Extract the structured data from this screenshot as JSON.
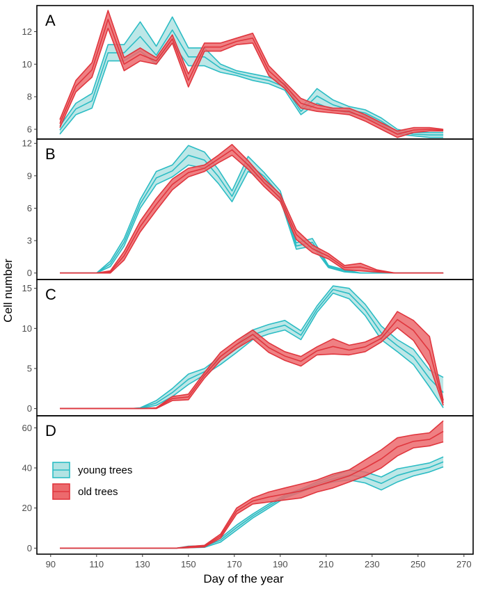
{
  "chart_data": {
    "type": "area",
    "xlabel": "Day of the year",
    "ylabel": "Cell number",
    "x_ticks": [
      90,
      110,
      130,
      150,
      170,
      190,
      210,
      230,
      250,
      270
    ],
    "xlim": [
      84,
      274
    ],
    "legend": {
      "placement": "inside-left, panel D",
      "entries": [
        {
          "label": "young trees",
          "series": "young",
          "color": "#2bbcc4",
          "fill": "#b2e3e3"
        },
        {
          "label": "old trees",
          "series": "old",
          "color": "#e0363e",
          "fill": "#ec6a6d"
        }
      ]
    },
    "colors": {
      "young_line": "#2bbcc4",
      "young_fill": "#b2e3e3",
      "old_line": "#e0363e",
      "old_fill": "#ec6a6d",
      "frame": "#000000"
    },
    "panels": [
      {
        "label": "A",
        "ylim": [
          5.4,
          13.6
        ],
        "y_ticks": [
          6,
          8,
          10,
          12
        ],
        "series": [
          {
            "key": "young",
            "x": [
              94,
              101,
              108,
              115,
              122,
              129,
              136,
              143,
              150,
              157,
              164,
              171,
              178,
              185,
              192,
              199,
              206,
              213,
              220,
              227,
              234,
              241,
              248,
              255,
              261
            ],
            "lower": [
              5.7,
              6.9,
              7.3,
              10.2,
              10.2,
              10.8,
              10.0,
              11.3,
              9.9,
              9.9,
              9.5,
              9.3,
              9.0,
              8.8,
              8.4,
              6.9,
              7.6,
              7.2,
              7.0,
              6.8,
              6.3,
              5.7,
              5.6,
              5.5,
              5.5
            ],
            "upper": [
              6.2,
              7.6,
              8.2,
              11.2,
              11.2,
              12.6,
              11.1,
              12.9,
              11.0,
              11.0,
              10.0,
              9.6,
              9.4,
              9.2,
              8.8,
              7.3,
              8.5,
              7.8,
              7.4,
              7.2,
              6.7,
              6.0,
              5.8,
              5.8,
              5.8
            ]
          },
          {
            "key": "old",
            "x": [
              94,
              101,
              108,
              115,
              122,
              129,
              136,
              143,
              150,
              157,
              164,
              171,
              178,
              185,
              192,
              199,
              206,
              213,
              220,
              227,
              234,
              241,
              248,
              255,
              261
            ],
            "lower": [
              6.1,
              8.3,
              9.2,
              12.2,
              9.6,
              10.2,
              10.0,
              11.3,
              8.6,
              10.8,
              10.8,
              11.2,
              11.3,
              9.3,
              8.5,
              7.3,
              7.1,
              7.0,
              6.9,
              6.5,
              6.0,
              5.5,
              5.8,
              5.9,
              5.9
            ],
            "upper": [
              6.6,
              9.0,
              10.1,
              13.3,
              10.4,
              11.0,
              10.4,
              11.8,
              9.4,
              11.3,
              11.3,
              11.6,
              11.9,
              9.9,
              8.9,
              7.9,
              7.5,
              7.3,
              7.3,
              6.9,
              6.4,
              5.9,
              6.1,
              6.1,
              6.0
            ]
          }
        ]
      },
      {
        "label": "B",
        "ylim": [
          -0.6,
          12.4
        ],
        "y_ticks": [
          0,
          3,
          6,
          9,
          12
        ],
        "series": [
          {
            "key": "young",
            "x": [
              94,
              100,
              105,
              110,
              116,
              122,
              129,
              136,
              143,
              150,
              157,
              163,
              169,
              176,
              183,
              190,
              197,
              204,
              211,
              218,
              225,
              232,
              240,
              250,
              261
            ],
            "lower": [
              0,
              0,
              0,
              0,
              0.6,
              2.5,
              6.0,
              8.2,
              8.9,
              10.0,
              9.7,
              8.3,
              6.6,
              9.4,
              8.6,
              6.8,
              2.2,
              2.5,
              0.5,
              0.1,
              0,
              0,
              0,
              0,
              0
            ],
            "upper": [
              0,
              0,
              0,
              0,
              1.1,
              3.2,
              6.8,
              9.4,
              10.0,
              11.8,
              11.2,
              9.6,
              7.6,
              10.8,
              9.3,
              7.6,
              2.8,
              3.2,
              0.7,
              0.3,
              0,
              0,
              0,
              0,
              0
            ]
          },
          {
            "key": "old",
            "x": [
              94,
              100,
              105,
              110,
              116,
              122,
              129,
              136,
              143,
              150,
              157,
              163,
              169,
              176,
              183,
              190,
              197,
              204,
              211,
              218,
              225,
              232,
              240,
              250,
              261
            ],
            "lower": [
              0,
              0,
              0,
              0,
              0,
              1.2,
              3.8,
              5.8,
              7.7,
              8.9,
              9.4,
              10.2,
              10.9,
              9.6,
              8.0,
              6.6,
              3.1,
              1.9,
              1.3,
              0.3,
              0.2,
              0.1,
              0,
              0,
              0
            ],
            "upper": [
              0,
              0,
              0,
              0,
              0.2,
              2.0,
              4.8,
              6.9,
              8.7,
              9.7,
              10.0,
              10.9,
              11.9,
              10.4,
              8.7,
              7.3,
              4.0,
              2.6,
              1.8,
              0.7,
              0.9,
              0.3,
              0,
              0,
              0
            ]
          }
        ]
      },
      {
        "label": "C",
        "ylim": [
          -0.9,
          16.1
        ],
        "y_ticks": [
          0,
          5,
          10,
          15
        ],
        "series": [
          {
            "key": "young",
            "x": [
              94,
              110,
              125,
              129,
              136,
              143,
              150,
              157,
              164,
              171,
              178,
              185,
              192,
              199,
              206,
              213,
              220,
              227,
              234,
              241,
              248,
              255,
              261
            ],
            "lower": [
              0,
              0,
              0,
              0,
              0.4,
              1.5,
              3.0,
              4.2,
              5.5,
              7.0,
              8.6,
              9.3,
              9.8,
              8.6,
              12.0,
              14.4,
              13.7,
              11.6,
              8.6,
              7.1,
              5.5,
              2.7,
              0.1
            ],
            "upper": [
              0,
              0,
              0,
              0.1,
              1.0,
              2.5,
              4.3,
              5.0,
              6.5,
              8.0,
              9.8,
              10.5,
              11.0,
              9.7,
              12.8,
              15.3,
              15.0,
              13.0,
              10.3,
              8.6,
              7.4,
              4.8,
              3.9
            ]
          },
          {
            "key": "old",
            "x": [
              94,
              110,
              125,
              129,
              136,
              143,
              150,
              157,
              164,
              171,
              178,
              185,
              192,
              199,
              206,
              213,
              220,
              227,
              234,
              241,
              248,
              255,
              261
            ],
            "lower": [
              0,
              0,
              0,
              0,
              0,
              1.0,
              1.1,
              3.8,
              6.0,
              7.5,
              8.7,
              7.0,
              6.0,
              5.3,
              6.7,
              6.8,
              6.7,
              7.1,
              8.3,
              10.1,
              8.5,
              5.4,
              0.4
            ],
            "upper": [
              0,
              0,
              0,
              0,
              0.1,
              1.5,
              1.8,
              4.5,
              7.0,
              8.5,
              9.8,
              8.2,
              7.1,
              6.5,
              7.7,
              8.7,
              7.9,
              8.3,
              9.2,
              12.1,
              11.0,
              9.0,
              1.0
            ]
          }
        ]
      },
      {
        "label": "D",
        "ylim": [
          -3,
          66
        ],
        "y_ticks": [
          0,
          20,
          40,
          60
        ],
        "series": [
          {
            "key": "young",
            "x": [
              94,
              110,
              130,
              145,
              150,
              157,
              164,
              171,
              178,
              185,
              192,
              199,
              206,
              213,
              220,
              227,
              234,
              241,
              248,
              255,
              261
            ],
            "lower": [
              0,
              0,
              0,
              0,
              0.2,
              0.4,
              3.0,
              9.0,
              15.0,
              20.0,
              25.0,
              28.0,
              31.0,
              33.0,
              34.0,
              32.5,
              29.0,
              33.0,
              36.0,
              38.0,
              40.5
            ],
            "upper": [
              0,
              0,
              0,
              0,
              1.0,
              1.2,
              5.0,
              11.5,
              17.0,
              22.0,
              26.5,
              29.5,
              33.0,
              36.0,
              39.0,
              38.0,
              35.5,
              39.5,
              41.0,
              42.5,
              45.5
            ]
          },
          {
            "key": "old",
            "x": [
              94,
              110,
              130,
              145,
              150,
              157,
              164,
              171,
              178,
              185,
              192,
              199,
              206,
              213,
              220,
              227,
              234,
              241,
              248,
              255,
              261
            ],
            "lower": [
              0,
              0,
              0,
              0,
              0.2,
              0.6,
              5.0,
              17.0,
              22.0,
              23.0,
              24.0,
              25.0,
              28.0,
              30.0,
              33.0,
              36.0,
              40.0,
              46.0,
              50.0,
              51.0,
              53.0
            ],
            "upper": [
              0,
              0,
              0,
              0,
              0.8,
              1.4,
              7.0,
              20.0,
              25.0,
              28.0,
              30.0,
              32.0,
              34.0,
              37.0,
              39.0,
              44.0,
              49.0,
              55.0,
              56.5,
              57.5,
              63.5
            ]
          }
        ]
      }
    ]
  }
}
